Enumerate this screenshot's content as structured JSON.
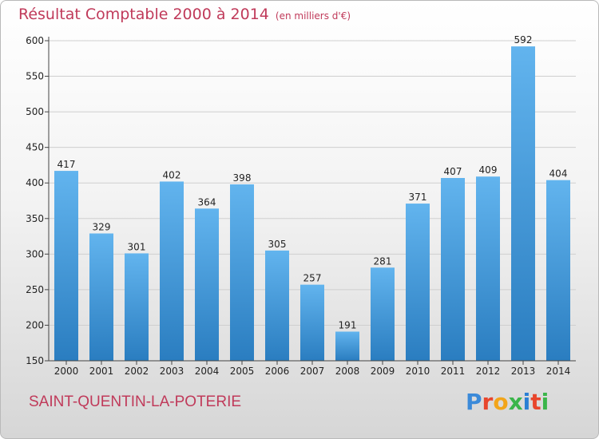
{
  "title": "Résultat Comptable 2000 à 2014",
  "subtitle": "(en milliers d'€)",
  "commune": "SAINT-QUENTIN-LA-POTERIE",
  "logo": {
    "text": "Proxiti",
    "letters": [
      {
        "char": "P",
        "color": "#3b8ad9"
      },
      {
        "char": "r",
        "color": "#e8462c"
      },
      {
        "char": "o",
        "color": "#f2a51a"
      },
      {
        "char": "x",
        "color": "#3bb54a"
      },
      {
        "char": "i",
        "color": "#2a7fd4"
      },
      {
        "char": "t",
        "color": "#e8462c"
      },
      {
        "char": "i",
        "color": "#3bb54a"
      }
    ]
  },
  "colors": {
    "bar_light": "#62b4ee",
    "bar_dark": "#2a7dc0",
    "axis": "#444444",
    "grid": "#cfcfcf"
  },
  "chart_data": {
    "type": "bar",
    "title": "Résultat Comptable 2000 à 2014",
    "subtitle": "(en milliers d'€)",
    "xlabel": "",
    "ylabel": "",
    "categories": [
      "2000",
      "2001",
      "2002",
      "2003",
      "2004",
      "2005",
      "2006",
      "2007",
      "2008",
      "2009",
      "2010",
      "2011",
      "2012",
      "2013",
      "2014"
    ],
    "values": [
      417,
      329,
      301,
      402,
      364,
      398,
      305,
      257,
      191,
      281,
      371,
      407,
      409,
      592,
      404
    ],
    "ylim": [
      150,
      600
    ],
    "yticks": [
      150,
      200,
      250,
      300,
      350,
      400,
      450,
      500,
      550,
      600
    ],
    "grid": true,
    "data_labels": true
  }
}
